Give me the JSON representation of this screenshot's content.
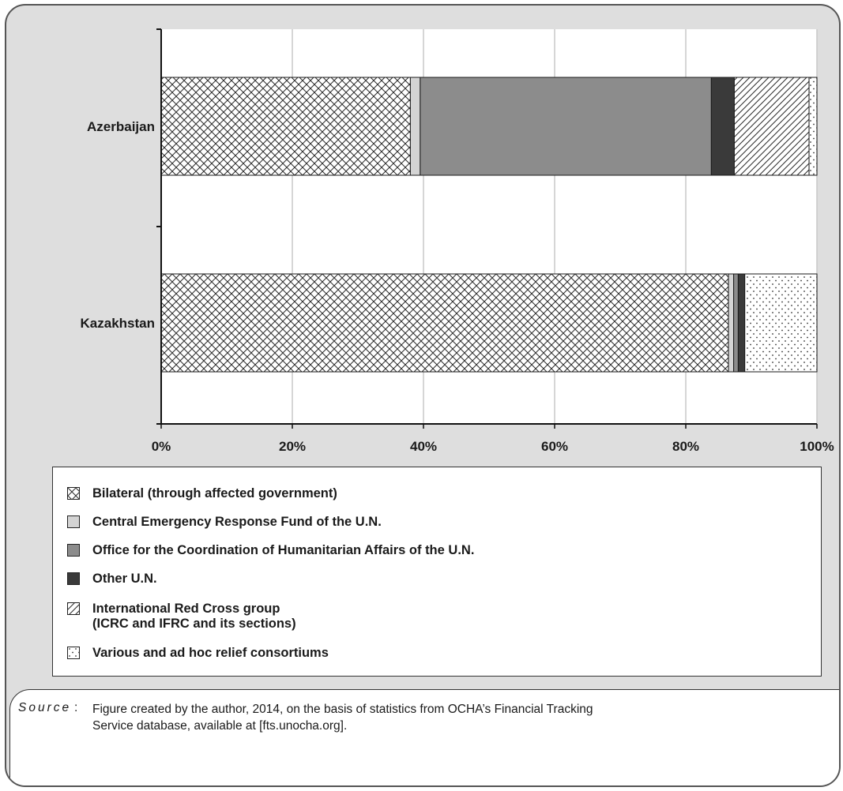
{
  "chart_data": {
    "type": "bar",
    "orientation": "horizontal",
    "stacked": true,
    "categories": [
      "Azerbaijan",
      "Kazakhstan"
    ],
    "series": [
      {
        "name": "Bilateral (through affected government)",
        "pattern": "crosshatch",
        "values": [
          38,
          86.5
        ]
      },
      {
        "name": "Central Emergency Response Fund of the U.N.",
        "color": "#d4d4d4",
        "values": [
          1.5,
          0.8
        ]
      },
      {
        "name": "Office for the Coordination of Humanitarian Affairs of the U.N.",
        "color": "#8c8c8c",
        "values": [
          44.4,
          0.7
        ]
      },
      {
        "name": "Other U.N.",
        "color": "#3a3a3a",
        "values": [
          3.5,
          1.0
        ]
      },
      {
        "name": "International Red Cross group\n(ICRC and IFRC and its sections)",
        "pattern": "diagonal",
        "values": [
          11.4,
          0
        ]
      },
      {
        "name": "Various and ad hoc relief consortiums",
        "pattern": "dots",
        "values": [
          1.2,
          11.0
        ]
      }
    ],
    "xlim": [
      0,
      100
    ],
    "xticks": [
      "0%",
      "20%",
      "40%",
      "60%",
      "80%",
      "100%"
    ],
    "grid": true,
    "legend_position": "bottom"
  },
  "source": {
    "label": "Source",
    "text": "Figure created by the author, 2014, on the basis of statistics from OCHA’s Financial Tracking Service database, available at [fts.unocha.org]."
  }
}
